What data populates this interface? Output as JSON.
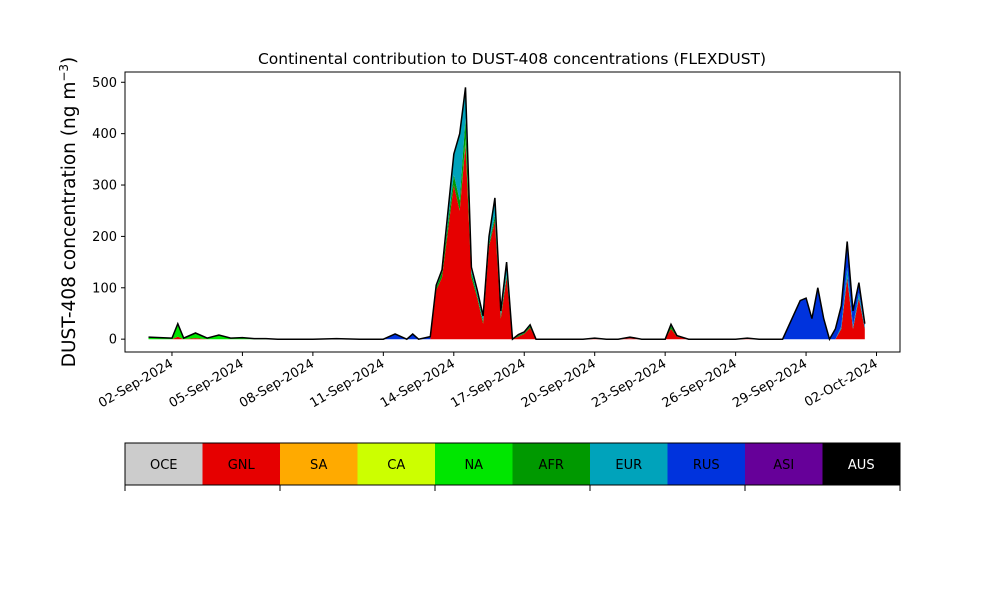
{
  "chart_data": {
    "type": "area",
    "stacked": true,
    "title": "Continental contribution to DUST-408 concentrations (FLEXDUST)",
    "ylabel": "DUST-408 concentration (ng m",
    "ylabel_unit_sup": "−3",
    "ylabel_close": ")",
    "xlabel": "",
    "ylim": [
      -25,
      520
    ],
    "yticks": [
      0,
      100,
      200,
      300,
      400,
      500
    ],
    "xlim": [
      "2024-08-31",
      "2024-10-03"
    ],
    "xtick_labels": [
      "02-Sep-2024",
      "05-Sep-2024",
      "08-Sep-2024",
      "11-Sep-2024",
      "14-Sep-2024",
      "17-Sep-2024",
      "20-Sep-2024",
      "23-Sep-2024",
      "26-Sep-2024",
      "29-Sep-2024",
      "02-Oct-2024"
    ],
    "xtick_dates": [
      "2024-09-02",
      "2024-09-05",
      "2024-09-08",
      "2024-09-11",
      "2024-09-14",
      "2024-09-17",
      "2024-09-20",
      "2024-09-23",
      "2024-09-26",
      "2024-09-29",
      "2024-10-02"
    ],
    "categories": [
      "OCE",
      "GNL",
      "SA",
      "CA",
      "NA",
      "AFR",
      "EUR",
      "RUS",
      "ASI",
      "AUS"
    ],
    "colors": {
      "OCE": "#cccccc",
      "GNL": "#e60000",
      "SA": "#ffaa00",
      "CA": "#ccff00",
      "NA": "#00e600",
      "AFR": "#009900",
      "EUR": "#00a3bb",
      "RUS": "#0033dd",
      "ASI": "#660099",
      "AUS": "#000000"
    },
    "grid": false,
    "legend_placement": "bottom colorbar",
    "x": [
      "2024-09-01 00:00",
      "2024-09-01 12:00",
      "2024-09-02 00:00",
      "2024-09-02 06:00",
      "2024-09-02 12:00",
      "2024-09-03 00:00",
      "2024-09-03 12:00",
      "2024-09-04 00:00",
      "2024-09-04 12:00",
      "2024-09-05 00:00",
      "2024-09-05 12:00",
      "2024-09-06 00:00",
      "2024-09-06 12:00",
      "2024-09-07 00:00",
      "2024-09-08 00:00",
      "2024-09-09 00:00",
      "2024-09-10 00:00",
      "2024-09-11 00:00",
      "2024-09-11 12:00",
      "2024-09-12 00:00",
      "2024-09-12 06:00",
      "2024-09-12 12:00",
      "2024-09-13 00:00",
      "2024-09-13 06:00",
      "2024-09-13 12:00",
      "2024-09-14 00:00",
      "2024-09-14 06:00",
      "2024-09-14 12:00",
      "2024-09-14 18:00",
      "2024-09-15 00:00",
      "2024-09-15 06:00",
      "2024-09-15 12:00",
      "2024-09-15 18:00",
      "2024-09-16 00:00",
      "2024-09-16 06:00",
      "2024-09-16 12:00",
      "2024-09-16 18:00",
      "2024-09-17 00:00",
      "2024-09-17 06:00",
      "2024-09-17 12:00",
      "2024-09-18 00:00",
      "2024-09-18 12:00",
      "2024-09-19 00:00",
      "2024-09-19 12:00",
      "2024-09-20 00:00",
      "2024-09-20 12:00",
      "2024-09-21 00:00",
      "2024-09-21 12:00",
      "2024-09-22 00:00",
      "2024-09-22 12:00",
      "2024-09-23 00:00",
      "2024-09-23 06:00",
      "2024-09-23 12:00",
      "2024-09-24 00:00",
      "2024-09-25 00:00",
      "2024-09-26 00:00",
      "2024-09-26 12:00",
      "2024-09-27 00:00",
      "2024-09-28 00:00",
      "2024-09-28 18:00",
      "2024-09-29 00:00",
      "2024-09-29 06:00",
      "2024-09-29 12:00",
      "2024-09-29 18:00",
      "2024-09-30 00:00",
      "2024-09-30 06:00",
      "2024-09-30 12:00",
      "2024-09-30 18:00",
      "2024-10-01 00:00",
      "2024-10-01 06:00",
      "2024-10-01 12:00"
    ],
    "series": [
      {
        "name": "OCE",
        "values": [
          0,
          0,
          0,
          0,
          0,
          0,
          0,
          0,
          0,
          0,
          0,
          0,
          0,
          0,
          0,
          0,
          0,
          0,
          0,
          0,
          0,
          0,
          0,
          0,
          0,
          0,
          0,
          0,
          0,
          0,
          0,
          0,
          0,
          0,
          0,
          0,
          0,
          0,
          0,
          0,
          0,
          0,
          0,
          0,
          0,
          0,
          0,
          0,
          0,
          0,
          0,
          0,
          0,
          0,
          0,
          0,
          0,
          0,
          0,
          0,
          0,
          0,
          0,
          0,
          0,
          0,
          0,
          0,
          0,
          0,
          0
        ]
      },
      {
        "name": "GNL",
        "values": [
          0,
          0,
          0,
          5,
          0,
          2,
          0,
          0,
          0,
          0,
          0,
          0,
          0,
          0,
          0,
          0,
          0,
          0,
          0,
          0,
          0,
          0,
          0,
          95,
          120,
          300,
          250,
          380,
          120,
          80,
          30,
          180,
          230,
          40,
          120,
          0,
          5,
          10,
          22,
          0,
          0,
          0,
          0,
          0,
          2,
          0,
          0,
          2,
          0,
          0,
          0,
          20,
          5,
          0,
          0,
          0,
          2,
          0,
          0,
          0,
          0,
          0,
          0,
          0,
          0,
          0,
          20,
          120,
          20,
          80,
          20
        ]
      },
      {
        "name": "SA",
        "values": [
          0,
          0,
          0,
          0,
          0,
          0,
          0,
          0,
          0,
          0,
          0,
          0,
          0,
          0,
          0,
          0,
          0,
          0,
          0,
          0,
          0,
          0,
          0,
          0,
          0,
          0,
          0,
          0,
          0,
          0,
          0,
          0,
          0,
          0,
          0,
          0,
          0,
          0,
          0,
          0,
          0,
          0,
          0,
          0,
          0,
          0,
          0,
          0,
          0,
          0,
          0,
          0,
          0,
          0,
          0,
          0,
          0,
          0,
          0,
          0,
          0,
          0,
          0,
          0,
          0,
          0,
          0,
          0,
          0,
          0,
          0
        ]
      },
      {
        "name": "CA",
        "values": [
          0,
          0,
          0,
          0,
          0,
          0,
          0,
          0,
          0,
          0,
          0,
          0,
          0,
          0,
          0,
          0,
          0,
          0,
          0,
          0,
          0,
          0,
          0,
          0,
          0,
          0,
          0,
          0,
          0,
          0,
          0,
          0,
          0,
          0,
          0,
          0,
          0,
          0,
          0,
          0,
          0,
          0,
          0,
          0,
          0,
          0,
          0,
          0,
          0,
          0,
          0,
          0,
          0,
          0,
          0,
          0,
          0,
          0,
          0,
          0,
          0,
          0,
          0,
          0,
          0,
          0,
          0,
          0,
          0,
          0,
          0
        ]
      },
      {
        "name": "NA",
        "values": [
          4,
          3,
          2,
          25,
          2,
          10,
          2,
          8,
          2,
          3,
          1,
          1,
          0,
          0,
          0,
          1,
          0,
          0,
          0,
          0,
          0,
          0,
          0,
          0,
          0,
          0,
          0,
          10,
          0,
          0,
          0,
          0,
          0,
          0,
          0,
          0,
          0,
          0,
          0,
          0,
          0,
          0,
          0,
          0,
          0,
          0,
          0,
          0,
          0,
          0,
          0,
          0,
          0,
          0,
          0,
          0,
          0,
          0,
          0,
          0,
          0,
          0,
          0,
          0,
          0,
          0,
          0,
          0,
          0,
          0,
          0
        ]
      },
      {
        "name": "AFR",
        "values": [
          0,
          0,
          0,
          0,
          0,
          0,
          0,
          0,
          0,
          0,
          0,
          0,
          0,
          0,
          0,
          0,
          0,
          0,
          0,
          0,
          0,
          0,
          0,
          5,
          10,
          20,
          20,
          40,
          10,
          5,
          5,
          5,
          10,
          5,
          5,
          0,
          2,
          2,
          3,
          0,
          0,
          0,
          0,
          0,
          0,
          0,
          0,
          0,
          0,
          0,
          0,
          5,
          1,
          0,
          0,
          0,
          0,
          0,
          0,
          0,
          0,
          0,
          0,
          0,
          0,
          0,
          0,
          0,
          0,
          0,
          0
        ]
      },
      {
        "name": "EUR",
        "values": [
          0,
          0,
          0,
          0,
          0,
          0,
          0,
          0,
          0,
          0,
          0,
          0,
          0,
          0,
          0,
          0,
          0,
          0,
          0,
          0,
          0,
          0,
          0,
          5,
          5,
          40,
          130,
          60,
          10,
          10,
          10,
          15,
          35,
          10,
          25,
          0,
          2,
          2,
          3,
          0,
          0,
          0,
          0,
          0,
          0,
          0,
          0,
          2,
          0,
          0,
          0,
          4,
          1,
          0,
          0,
          0,
          0,
          0,
          0,
          0,
          0,
          0,
          0,
          0,
          0,
          0,
          5,
          20,
          5,
          10,
          5
        ]
      },
      {
        "name": "RUS",
        "values": [
          0,
          0,
          0,
          0,
          0,
          0,
          0,
          0,
          0,
          0,
          0,
          0,
          0,
          0,
          0,
          0,
          0,
          0,
          10,
          0,
          10,
          0,
          5,
          0,
          0,
          0,
          0,
          0,
          0,
          0,
          0,
          0,
          0,
          0,
          0,
          0,
          0,
          0,
          0,
          0,
          0,
          0,
          0,
          0,
          0,
          0,
          0,
          0,
          0,
          0,
          0,
          0,
          0,
          0,
          0,
          0,
          0,
          0,
          0,
          75,
          80,
          40,
          100,
          40,
          0,
          20,
          40,
          50,
          30,
          20,
          5
        ]
      },
      {
        "name": "ASI",
        "values": [
          0,
          0,
          0,
          0,
          0,
          0,
          0,
          0,
          0,
          0,
          0,
          0,
          0,
          0,
          0,
          0,
          0,
          0,
          0,
          0,
          0,
          0,
          0,
          0,
          0,
          0,
          0,
          0,
          0,
          0,
          0,
          0,
          0,
          0,
          0,
          0,
          0,
          0,
          0,
          0,
          0,
          0,
          0,
          0,
          0,
          0,
          0,
          0,
          0,
          0,
          0,
          0,
          0,
          0,
          0,
          0,
          0,
          0,
          0,
          0,
          0,
          0,
          0,
          0,
          0,
          0,
          0,
          0,
          0,
          0,
          0
        ]
      },
      {
        "name": "AUS",
        "values": [
          0,
          0,
          0,
          0,
          0,
          0,
          0,
          0,
          0,
          0,
          0,
          0,
          0,
          0,
          0,
          0,
          0,
          0,
          0,
          0,
          0,
          0,
          0,
          0,
          0,
          0,
          0,
          0,
          0,
          0,
          0,
          0,
          0,
          0,
          0,
          0,
          0,
          0,
          0,
          0,
          0,
          0,
          0,
          0,
          0,
          0,
          0,
          0,
          0,
          0,
          0,
          0,
          0,
          0,
          0,
          0,
          0,
          0,
          0,
          0,
          0,
          0,
          0,
          0,
          0,
          0,
          0,
          0,
          0,
          0,
          0
        ]
      }
    ]
  }
}
